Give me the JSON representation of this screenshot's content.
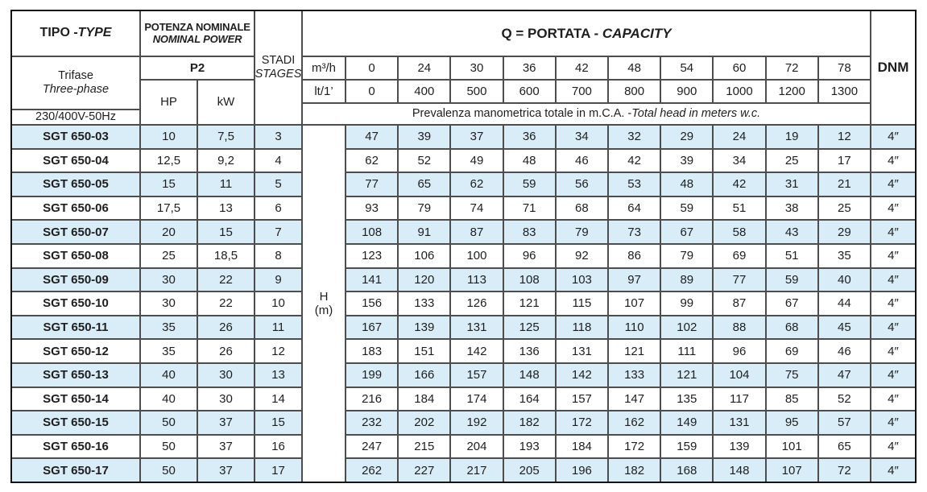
{
  "header": {
    "tipo_it": "TIPO - ",
    "tipo_en": "TYPE",
    "potenza_it": "POTENZA NOMINALE",
    "potenza_en": "NOMINAL POWER",
    "stadi_it": "STADI",
    "stadi_en": "STAGES",
    "q_it": "Q = PORTATA - ",
    "q_en": "CAPACITY",
    "dnm": "DNM",
    "trifase_it": "Trifase",
    "trifase_en": "Three-phase",
    "voltage": "230/400V-50Hz",
    "p2": "P2",
    "hp": "HP",
    "kw": "kW",
    "m3h_label": "m³/h",
    "lt_label": "lt/1’",
    "prevalenza_it": "Prevalenza manometrica totale in m.C.A. - ",
    "prevalenza_en": "Total head in meters w.c.",
    "h_label": "H",
    "h_unit": "(m)"
  },
  "flow_m3h": [
    "0",
    "24",
    "30",
    "36",
    "42",
    "48",
    "54",
    "60",
    "72",
    "78"
  ],
  "flow_lt": [
    "0",
    "400",
    "500",
    "600",
    "700",
    "800",
    "900",
    "1000",
    "1200",
    "1300"
  ],
  "rows": [
    {
      "model": "SGT 650-03",
      "hp": "10",
      "kw": "7,5",
      "stages": "3",
      "heads": [
        "47",
        "39",
        "37",
        "36",
        "34",
        "32",
        "29",
        "24",
        "19",
        "12"
      ],
      "dnm": "4″"
    },
    {
      "model": "SGT 650-04",
      "hp": "12,5",
      "kw": "9,2",
      "stages": "4",
      "heads": [
        "62",
        "52",
        "49",
        "48",
        "46",
        "42",
        "39",
        "34",
        "25",
        "17"
      ],
      "dnm": "4″"
    },
    {
      "model": "SGT 650-05",
      "hp": "15",
      "kw": "11",
      "stages": "5",
      "heads": [
        "77",
        "65",
        "62",
        "59",
        "56",
        "53",
        "48",
        "42",
        "31",
        "21"
      ],
      "dnm": "4″"
    },
    {
      "model": "SGT 650-06",
      "hp": "17,5",
      "kw": "13",
      "stages": "6",
      "heads": [
        "93",
        "79",
        "74",
        "71",
        "68",
        "64",
        "59",
        "51",
        "38",
        "25"
      ],
      "dnm": "4″"
    },
    {
      "model": "SGT 650-07",
      "hp": "20",
      "kw": "15",
      "stages": "7",
      "heads": [
        "108",
        "91",
        "87",
        "83",
        "79",
        "73",
        "67",
        "58",
        "43",
        "29"
      ],
      "dnm": "4″"
    },
    {
      "model": "SGT 650-08",
      "hp": "25",
      "kw": "18,5",
      "stages": "8",
      "heads": [
        "123",
        "106",
        "100",
        "96",
        "92",
        "86",
        "79",
        "69",
        "51",
        "35"
      ],
      "dnm": "4″"
    },
    {
      "model": "SGT 650-09",
      "hp": "30",
      "kw": "22",
      "stages": "9",
      "heads": [
        "141",
        "120",
        "113",
        "108",
        "103",
        "97",
        "89",
        "77",
        "59",
        "40"
      ],
      "dnm": "4″"
    },
    {
      "model": "SGT 650-10",
      "hp": "30",
      "kw": "22",
      "stages": "10",
      "heads": [
        "156",
        "133",
        "126",
        "121",
        "115",
        "107",
        "99",
        "87",
        "67",
        "44"
      ],
      "dnm": "4″"
    },
    {
      "model": "SGT 650-11",
      "hp": "35",
      "kw": "26",
      "stages": "11",
      "heads": [
        "167",
        "139",
        "131",
        "125",
        "118",
        "110",
        "102",
        "88",
        "68",
        "45"
      ],
      "dnm": "4″"
    },
    {
      "model": "SGT 650-12",
      "hp": "35",
      "kw": "26",
      "stages": "12",
      "heads": [
        "183",
        "151",
        "142",
        "136",
        "131",
        "121",
        "111",
        "96",
        "69",
        "46"
      ],
      "dnm": "4″"
    },
    {
      "model": "SGT 650-13",
      "hp": "40",
      "kw": "30",
      "stages": "13",
      "heads": [
        "199",
        "166",
        "157",
        "148",
        "142",
        "133",
        "121",
        "104",
        "75",
        "47"
      ],
      "dnm": "4″"
    },
    {
      "model": "SGT 650-14",
      "hp": "40",
      "kw": "30",
      "stages": "14",
      "heads": [
        "216",
        "184",
        "174",
        "164",
        "157",
        "147",
        "135",
        "117",
        "85",
        "52"
      ],
      "dnm": "4″"
    },
    {
      "model": "SGT 650-15",
      "hp": "50",
      "kw": "37",
      "stages": "15",
      "heads": [
        "232",
        "202",
        "192",
        "182",
        "172",
        "162",
        "149",
        "131",
        "95",
        "57"
      ],
      "dnm": "4″"
    },
    {
      "model": "SGT 650-16",
      "hp": "50",
      "kw": "37",
      "stages": "16",
      "heads": [
        "247",
        "215",
        "204",
        "193",
        "184",
        "172",
        "159",
        "139",
        "101",
        "65"
      ],
      "dnm": "4″"
    },
    {
      "model": "SGT 650-17",
      "hp": "50",
      "kw": "37",
      "stages": "17",
      "heads": [
        "262",
        "227",
        "217",
        "205",
        "196",
        "182",
        "168",
        "148",
        "107",
        "72"
      ],
      "dnm": "4″"
    }
  ],
  "colors": {
    "stripe": "#d9edf8",
    "grid_line": "#4d4d4d",
    "outer_border": "#141414",
    "text": "#1e1e1e"
  }
}
